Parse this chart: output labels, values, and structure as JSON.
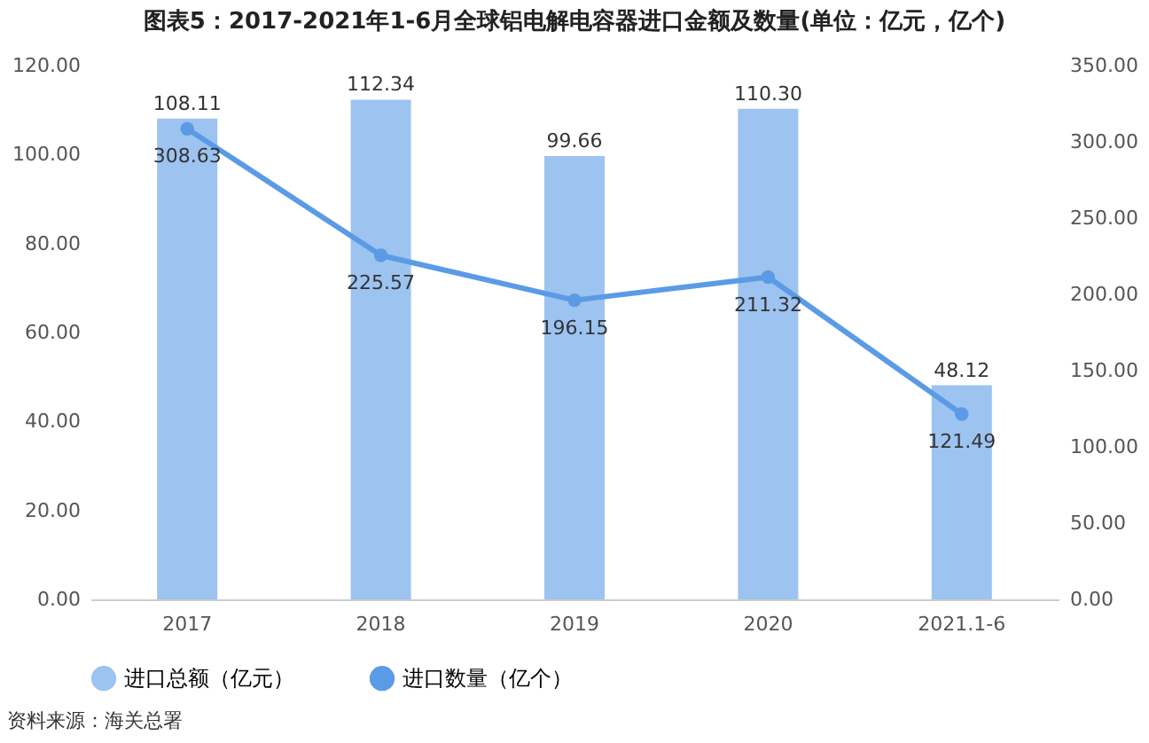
{
  "chart_data": {
    "type": "bar",
    "title": "图表5：2017-2021年1-6月全球铝电解电容器进口金额及数量(单位：亿元，亿个)",
    "categories": [
      "2017",
      "2018",
      "2019",
      "2020",
      "2021.1-6"
    ],
    "series": [
      {
        "name": "进口总额（亿元）",
        "color": "#9dc3f0",
        "values": [
          108.11,
          112.34,
          99.66,
          110.3,
          48.12
        ],
        "value_labels": [
          "108.11",
          "112.34",
          "99.66",
          "110.30",
          "48.12"
        ]
      },
      {
        "name": "进口数量（亿个）",
        "type": "line",
        "axis": "y2",
        "color": "#5b9be6",
        "values": [
          308.63,
          225.57,
          196.15,
          211.32,
          121.49
        ],
        "value_labels": [
          "308.63",
          "225.57",
          "196.15",
          "211.32",
          "121.49"
        ]
      }
    ],
    "ylim": [
      0,
      120
    ],
    "yticks": [
      {
        "value": 0,
        "label": "0.00"
      },
      {
        "value": 20,
        "label": "20.00"
      },
      {
        "value": 40,
        "label": "40.00"
      },
      {
        "value": 60,
        "label": "60.00"
      },
      {
        "value": 80,
        "label": "80.00"
      },
      {
        "value": 100,
        "label": "100.00"
      },
      {
        "value": 120,
        "label": "120.00"
      }
    ],
    "y2lim": [
      0,
      350
    ],
    "y2ticks": [
      {
        "value": 0,
        "label": "0.00"
      },
      {
        "value": 50,
        "label": "50.00"
      },
      {
        "value": 100,
        "label": "100.00"
      },
      {
        "value": 150,
        "label": "150.00"
      },
      {
        "value": 200,
        "label": "200.00"
      },
      {
        "value": 250,
        "label": "250.00"
      },
      {
        "value": 300,
        "label": "300.00"
      },
      {
        "value": 350,
        "label": "350.00"
      }
    ],
    "marker": "circle",
    "legend": "bottom",
    "annotations": [
      "资料来源：海关总署"
    ]
  }
}
